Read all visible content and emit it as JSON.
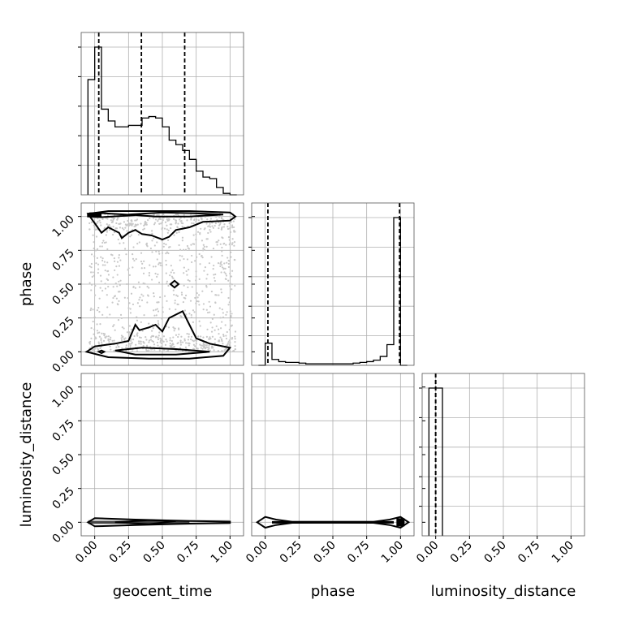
{
  "chart_data": {
    "type": "corner",
    "parameters": [
      "geocent_time",
      "phase",
      "luminosity_distance"
    ],
    "axis_range": [
      -0.1,
      1.1
    ],
    "tick_values": [
      0.0,
      0.25,
      0.5,
      0.75,
      1.0
    ],
    "tick_labels": [
      "0.00",
      "0.25",
      "0.50",
      "0.75",
      "1.00"
    ],
    "grid": true,
    "histograms": [
      {
        "param": "geocent_time",
        "bin_edges": [
          -0.05,
          0.0,
          0.05,
          0.1,
          0.15,
          0.2,
          0.25,
          0.3,
          0.35,
          0.4,
          0.45,
          0.5,
          0.55,
          0.6,
          0.65,
          0.7,
          0.75,
          0.8,
          0.85,
          0.9,
          0.95,
          1.0,
          1.05
        ],
        "counts": [
          0.78,
          1.0,
          0.58,
          0.5,
          0.46,
          0.46,
          0.47,
          0.47,
          0.52,
          0.53,
          0.52,
          0.46,
          0.37,
          0.34,
          0.3,
          0.24,
          0.16,
          0.12,
          0.11,
          0.05,
          0.01,
          0.0
        ],
        "quantiles": [
          0.03,
          0.345,
          0.665
        ]
      },
      {
        "param": "phase",
        "bin_edges": [
          -0.05,
          0.0,
          0.05,
          0.1,
          0.15,
          0.2,
          0.25,
          0.3,
          0.35,
          0.4,
          0.45,
          0.5,
          0.55,
          0.6,
          0.65,
          0.7,
          0.75,
          0.8,
          0.85,
          0.9,
          0.95,
          1.0,
          1.05
        ],
        "counts": [
          0.0,
          0.15,
          0.04,
          0.025,
          0.02,
          0.02,
          0.015,
          0.01,
          0.01,
          0.01,
          0.01,
          0.01,
          0.01,
          0.01,
          0.015,
          0.02,
          0.025,
          0.035,
          0.06,
          0.14,
          1.0,
          0.0
        ],
        "quantiles": [
          0.02,
          0.993
        ]
      },
      {
        "param": "luminosity_distance",
        "bin_edges": [
          -0.05,
          0.0,
          0.05
        ],
        "counts": [
          1.0,
          1.0
        ],
        "quantiles": [
          0.0,
          0.0
        ]
      }
    ],
    "contour_panels": [
      {
        "x": "geocent_time",
        "y": "phase",
        "contours": [
          [
            [
              -0.05,
              1.02
            ],
            [
              0.1,
              1.04
            ],
            [
              0.4,
              1.04
            ],
            [
              0.7,
              1.04
            ],
            [
              1.0,
              1.03
            ],
            [
              1.04,
              1.0
            ],
            [
              1.0,
              0.97
            ],
            [
              0.8,
              0.96
            ],
            [
              0.7,
              0.92
            ],
            [
              0.6,
              0.9
            ],
            [
              0.55,
              0.85
            ],
            [
              0.5,
              0.83
            ],
            [
              0.42,
              0.86
            ],
            [
              0.35,
              0.87
            ],
            [
              0.3,
              0.9
            ],
            [
              0.25,
              0.88
            ],
            [
              0.2,
              0.84
            ],
            [
              0.18,
              0.88
            ],
            [
              0.1,
              0.92
            ],
            [
              0.05,
              0.88
            ],
            [
              0.0,
              0.95
            ],
            [
              -0.05,
              1.02
            ]
          ],
          [
            [
              -0.06,
              0.0
            ],
            [
              0.0,
              0.04
            ],
            [
              0.15,
              0.06
            ],
            [
              0.25,
              0.08
            ],
            [
              0.3,
              0.2
            ],
            [
              0.33,
              0.16
            ],
            [
              0.4,
              0.18
            ],
            [
              0.45,
              0.2
            ],
            [
              0.5,
              0.15
            ],
            [
              0.55,
              0.25
            ],
            [
              0.65,
              0.3
            ],
            [
              0.7,
              0.2
            ],
            [
              0.75,
              0.1
            ],
            [
              0.85,
              0.06
            ],
            [
              1.0,
              0.03
            ],
            [
              0.95,
              -0.03
            ],
            [
              0.7,
              -0.05
            ],
            [
              0.4,
              -0.05
            ],
            [
              0.1,
              -0.04
            ],
            [
              -0.06,
              0.0
            ]
          ],
          [
            [
              -0.05,
              1.02
            ],
            [
              0.05,
              1.025
            ],
            [
              0.3,
              1.01
            ],
            [
              0.05,
              0.995
            ],
            [
              -0.05,
              1.0
            ],
            [
              -0.05,
              1.02
            ]
          ],
          [
            [
              0.25,
              1.015
            ],
            [
              0.5,
              1.03
            ],
            [
              0.7,
              1.025
            ],
            [
              0.95,
              1.015
            ],
            [
              0.7,
              1.0
            ],
            [
              0.45,
              1.0
            ],
            [
              0.25,
              1.015
            ]
          ],
          [
            [
              0.15,
              0.01
            ],
            [
              0.35,
              0.03
            ],
            [
              0.6,
              0.02
            ],
            [
              0.85,
              0.0
            ],
            [
              0.6,
              -0.02
            ],
            [
              0.3,
              -0.02
            ],
            [
              0.15,
              0.01
            ]
          ],
          [
            [
              0.56,
              0.5
            ],
            [
              0.59,
              0.525
            ],
            [
              0.62,
              0.5
            ],
            [
              0.59,
              0.475
            ],
            [
              0.56,
              0.5
            ]
          ],
          [
            [
              0.03,
              0.0
            ],
            [
              0.05,
              0.01
            ],
            [
              0.07,
              0.0
            ],
            [
              0.05,
              -0.01
            ],
            [
              0.03,
              0.0
            ]
          ]
        ]
      },
      {
        "x": "geocent_time",
        "y": "luminosity_distance",
        "contours": [
          [
            [
              -0.05,
              0.0
            ],
            [
              0.0,
              0.03
            ],
            [
              0.3,
              0.02
            ],
            [
              0.7,
              0.01
            ],
            [
              1.0,
              0.005
            ],
            [
              1.0,
              -0.005
            ],
            [
              0.7,
              -0.01
            ],
            [
              0.3,
              -0.02
            ],
            [
              0.0,
              -0.03
            ],
            [
              -0.05,
              0.0
            ]
          ],
          [
            [
              0.15,
              0.0
            ],
            [
              0.4,
              0.015
            ],
            [
              0.6,
              0.01
            ],
            [
              0.4,
              -0.015
            ],
            [
              0.15,
              0.0
            ]
          ]
        ]
      },
      {
        "x": "phase",
        "y": "luminosity_distance",
        "contours": [
          [
            [
              -0.06,
              0.0
            ],
            [
              0.0,
              0.04
            ],
            [
              0.08,
              0.02
            ],
            [
              0.2,
              0.004
            ],
            [
              0.5,
              0.003
            ],
            [
              0.8,
              0.004
            ],
            [
              0.92,
              0.02
            ],
            [
              1.0,
              0.04
            ],
            [
              1.06,
              0.0
            ],
            [
              1.0,
              -0.04
            ],
            [
              0.92,
              -0.02
            ],
            [
              0.8,
              -0.004
            ],
            [
              0.5,
              -0.003
            ],
            [
              0.2,
              -0.004
            ],
            [
              0.08,
              -0.02
            ],
            [
              0.0,
              -0.04
            ],
            [
              -0.06,
              0.0
            ]
          ]
        ]
      }
    ]
  }
}
